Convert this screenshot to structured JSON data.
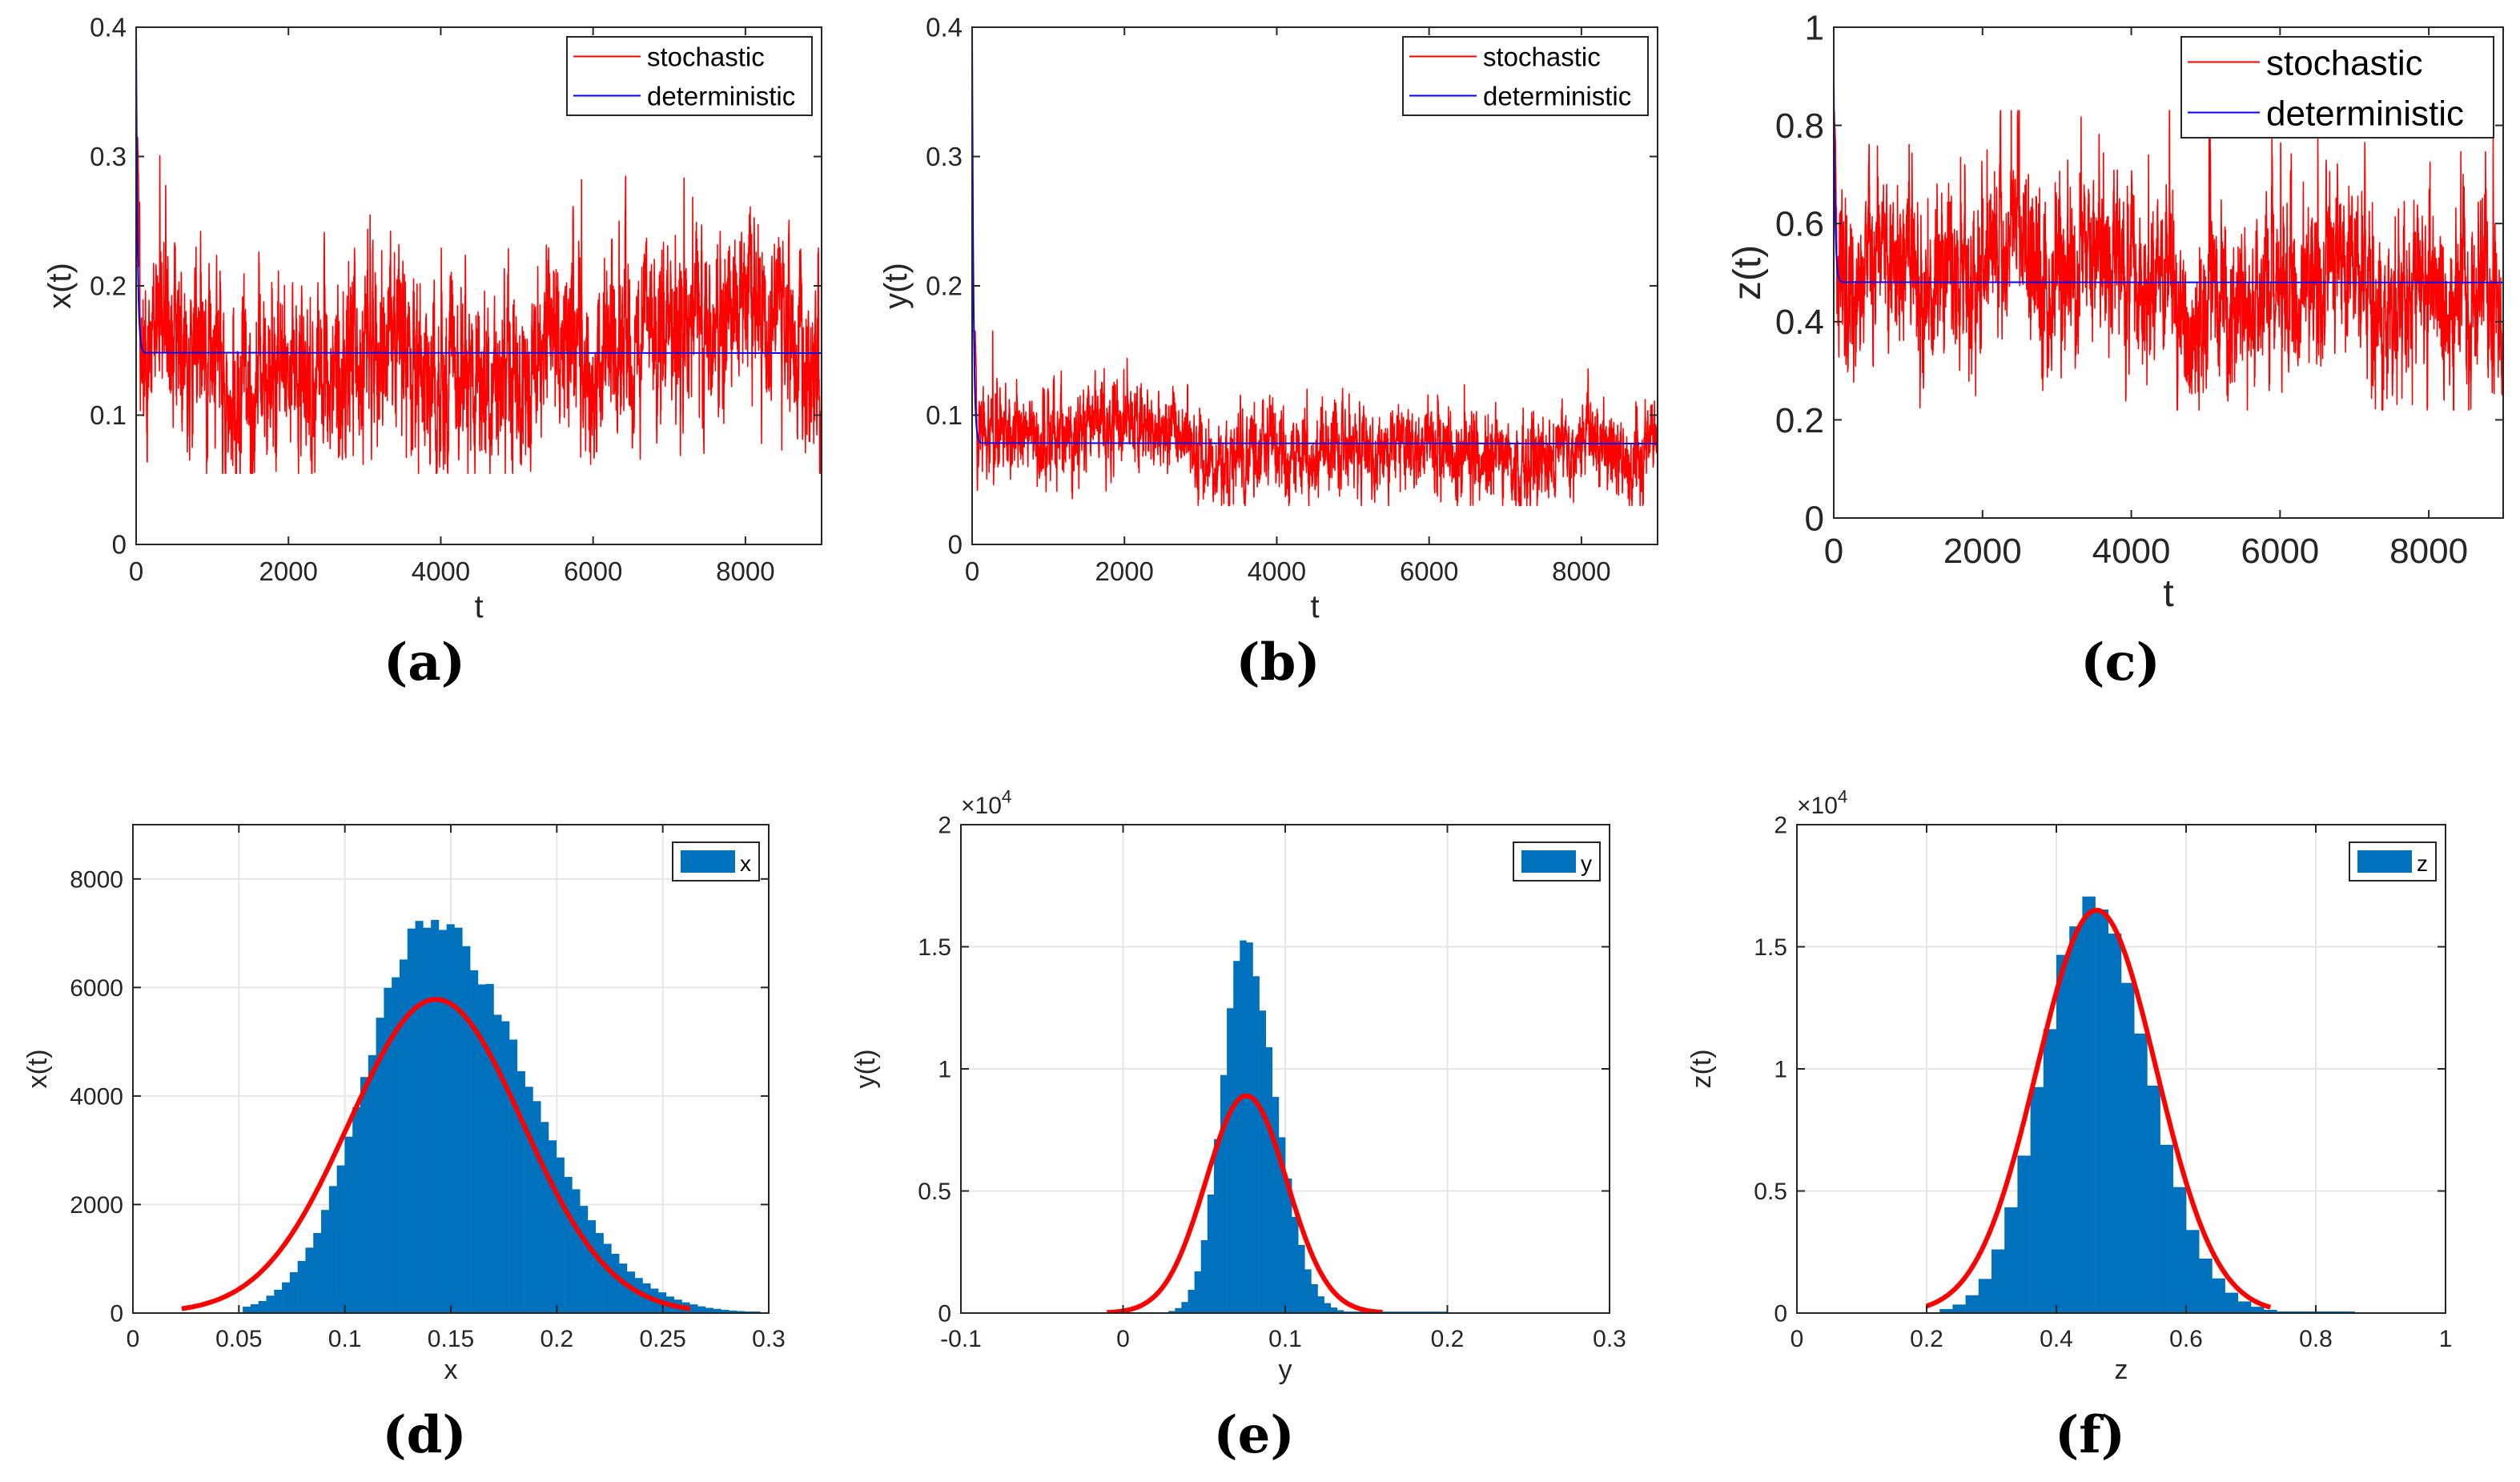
{
  "colors": {
    "stochastic": "#ff0000",
    "deterministic": "#0000ff",
    "histogram": "#0072bd",
    "fit": "#ff0000",
    "grid": "#e6e6e6"
  },
  "chart_data": [
    {
      "id": "a",
      "caption": "(a)",
      "type": "line",
      "xlabel": "t",
      "ylabel": "x(t)",
      "xlim": [
        0,
        9000
      ],
      "ylim": [
        0,
        0.4
      ],
      "xticks": [
        0,
        2000,
        4000,
        6000,
        8000
      ],
      "xtick_labels": [
        "0",
        "2000",
        "4000",
        "6000",
        "8000"
      ],
      "yticks": [
        0,
        0.1,
        0.2,
        0.3,
        0.4
      ],
      "ytick_labels": [
        "0",
        "0.1",
        "0.2",
        "0.3",
        "0.4"
      ],
      "legend": [
        "stochastic",
        "deterministic"
      ],
      "legend_position": "top-right",
      "series": [
        {
          "name": "stochastic",
          "initial": 0.4,
          "mean": 0.145,
          "std": 0.034,
          "min": 0.055,
          "max": 0.315
        },
        {
          "name": "deterministic",
          "initial": 0.4,
          "equilibrium": 0.148
        }
      ]
    },
    {
      "id": "b",
      "caption": "(b)",
      "type": "line",
      "xlabel": "t",
      "ylabel": "y(t)",
      "xlim": [
        0,
        9000
      ],
      "ylim": [
        0,
        0.4
      ],
      "xticks": [
        0,
        2000,
        4000,
        6000,
        8000
      ],
      "xtick_labels": [
        "0",
        "2000",
        "4000",
        "6000",
        "8000"
      ],
      "yticks": [
        0,
        0.1,
        0.2,
        0.3,
        0.4
      ],
      "ytick_labels": [
        "0",
        "0.1",
        "0.2",
        "0.3",
        "0.4"
      ],
      "legend": [
        "stochastic",
        "deterministic"
      ],
      "legend_position": "top-right",
      "series": [
        {
          "name": "stochastic",
          "initial": 0.4,
          "mean": 0.078,
          "std": 0.016,
          "min": 0.03,
          "max": 0.165
        },
        {
          "name": "deterministic",
          "initial": 0.4,
          "equilibrium": 0.078
        }
      ]
    },
    {
      "id": "c",
      "caption": "(c)",
      "type": "line",
      "xlabel": "t",
      "ylabel": "z(t)",
      "xlim": [
        0,
        9000
      ],
      "ylim": [
        0,
        1
      ],
      "xticks": [
        0,
        2000,
        4000,
        6000,
        8000
      ],
      "xtick_labels": [
        "0",
        "2000",
        "4000",
        "6000",
        "8000"
      ],
      "yticks": [
        0,
        0.2,
        0.4,
        0.6,
        0.8,
        1
      ],
      "ytick_labels": [
        "0",
        "0.2",
        "0.4",
        "0.6",
        "0.8",
        "1"
      ],
      "legend": [
        "stochastic",
        "deterministic"
      ],
      "legend_position": "top-right",
      "series": [
        {
          "name": "stochastic",
          "initial": 0.9,
          "mean": 0.475,
          "std": 0.085,
          "min": 0.22,
          "max": 0.83
        },
        {
          "name": "deterministic",
          "initial": 0.9,
          "equilibrium": 0.48
        }
      ]
    },
    {
      "id": "d",
      "caption": "(d)",
      "type": "histogram",
      "xlabel": "x",
      "ylabel": "x(t)",
      "xlim": [
        0,
        0.3
      ],
      "ylim": [
        0,
        9000
      ],
      "xticks": [
        0,
        0.05,
        0.1,
        0.15,
        0.2,
        0.25,
        0.3
      ],
      "xtick_labels": [
        "0",
        "0.05",
        "0.1",
        "0.15",
        "0.2",
        "0.25",
        "0.3"
      ],
      "yticks": [
        0,
        2000,
        4000,
        6000,
        8000
      ],
      "ytick_labels": [
        "0",
        "2000",
        "4000",
        "6000",
        "8000"
      ],
      "exponent_label": "",
      "legend": [
        "x"
      ],
      "legend_position": "top-right",
      "histogram": {
        "bin_width": 0.0037,
        "peak_x": 0.14,
        "peak": 7250,
        "left_sd": 0.03,
        "right_sd": 0.045,
        "min": 0.05,
        "max": 0.295
      },
      "fit": {
        "mean": 0.143,
        "std": 0.041,
        "peak": 5780,
        "x_range": [
          0.023,
          0.263
        ]
      }
    },
    {
      "id": "e",
      "caption": "(e)",
      "type": "histogram",
      "xlabel": "y",
      "ylabel": "y(t)",
      "xlim": [
        -0.1,
        0.3
      ],
      "ylim": [
        0,
        20000
      ],
      "xticks": [
        -0.1,
        0,
        0.1,
        0.2,
        0.3
      ],
      "xtick_labels": [
        "-0.1",
        "0",
        "0.1",
        "0.2",
        "0.3"
      ],
      "yticks": [
        0,
        5000,
        10000,
        15000,
        20000
      ],
      "ytick_labels": [
        "0",
        "0.5",
        "1",
        "1.5",
        "2"
      ],
      "exponent_label": "×10",
      "exponent_power": "4",
      "legend": [
        "y"
      ],
      "legend_position": "top-right",
      "histogram": {
        "bin_width": 0.004,
        "peak_x": 0.075,
        "peak": 15000,
        "left_sd": 0.014,
        "right_sd": 0.019,
        "min": 0.03,
        "max": 0.2
      },
      "fit": {
        "mean": 0.076,
        "std": 0.025,
        "peak": 8900,
        "x_range": [
          -0.01,
          0.16
        ]
      }
    },
    {
      "id": "f",
      "caption": "(f)",
      "type": "histogram",
      "xlabel": "z",
      "ylabel": "z(t)",
      "xlim": [
        0,
        1
      ],
      "ylim": [
        0,
        20000
      ],
      "xticks": [
        0,
        0.2,
        0.4,
        0.6,
        0.8,
        1
      ],
      "xtick_labels": [
        "0",
        "0.2",
        "0.4",
        "0.6",
        "0.8",
        "1"
      ],
      "yticks": [
        0,
        5000,
        10000,
        15000,
        20000
      ],
      "ytick_labels": [
        "0",
        "0.5",
        "1",
        "1.5",
        "2"
      ],
      "exponent_label": "×10",
      "exponent_power": "4",
      "legend": [
        "z"
      ],
      "legend_position": "top-right",
      "histogram": {
        "bin_width": 0.02,
        "peak_x": 0.45,
        "peak": 16900,
        "left_sd": 0.072,
        "right_sd": 0.09,
        "min": 0.22,
        "max": 0.86
      },
      "fit": {
        "mean": 0.462,
        "std": 0.092,
        "peak": 16500,
        "x_range": [
          0.2,
          0.73
        ]
      }
    }
  ]
}
